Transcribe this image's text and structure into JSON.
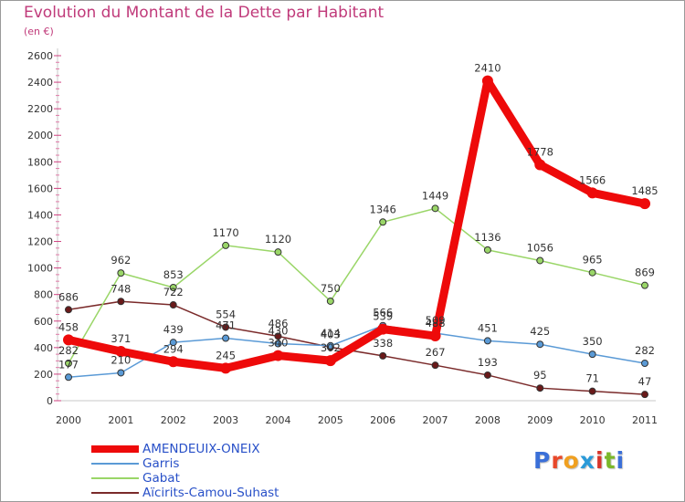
{
  "header": {
    "title": "Evolution du Montant de la Dette par Habitant",
    "subtitle": "(en €)"
  },
  "logo": {
    "text": "Proxiti",
    "letter_colors": [
      "#3a6fd8",
      "#e8482a",
      "#f0a020",
      "#2a9ad8",
      "#d8352a",
      "#7ab82a",
      "#3a6fd8"
    ]
  },
  "chart_data": {
    "type": "line",
    "title": "Evolution du Montant de la Dette par Habitant",
    "subtitle": "(en €)",
    "xlabel": "",
    "ylabel": "",
    "x": [
      "2000",
      "2001",
      "2002",
      "2003",
      "2004",
      "2005",
      "2006",
      "2007",
      "2008",
      "2009",
      "2010",
      "2011"
    ],
    "ylim": [
      0,
      2600
    ],
    "yticks": [
      0,
      200,
      400,
      600,
      800,
      1000,
      1200,
      1400,
      1600,
      1800,
      2000,
      2200,
      2400,
      2600
    ],
    "grid": false,
    "legend_position": "bottom-left",
    "series": [
      {
        "name": "Aïcirits-Camou-Suhast",
        "color": "#7a2a2a",
        "values": [
          686,
          748,
          722,
          554,
          486,
          403,
          338,
          267,
          193,
          95,
          71,
          47
        ]
      },
      {
        "name": "Gabat",
        "color": "#9ad668",
        "values": [
          282,
          962,
          853,
          1170,
          1120,
          750,
          1346,
          1449,
          1136,
          1056,
          965,
          869
        ]
      },
      {
        "name": "Garris",
        "color": "#5a9ad6",
        "values": [
          177,
          210,
          439,
          471,
          430,
          414,
          566,
          509,
          451,
          425,
          350,
          282
        ]
      },
      {
        "name": "AMENDEUIX-ONEIX",
        "color": "#ee0a0a",
        "values": [
          458,
          371,
          294,
          245,
          340,
          302,
          539,
          488,
          2410,
          1778,
          1566,
          1485
        ]
      }
    ]
  }
}
